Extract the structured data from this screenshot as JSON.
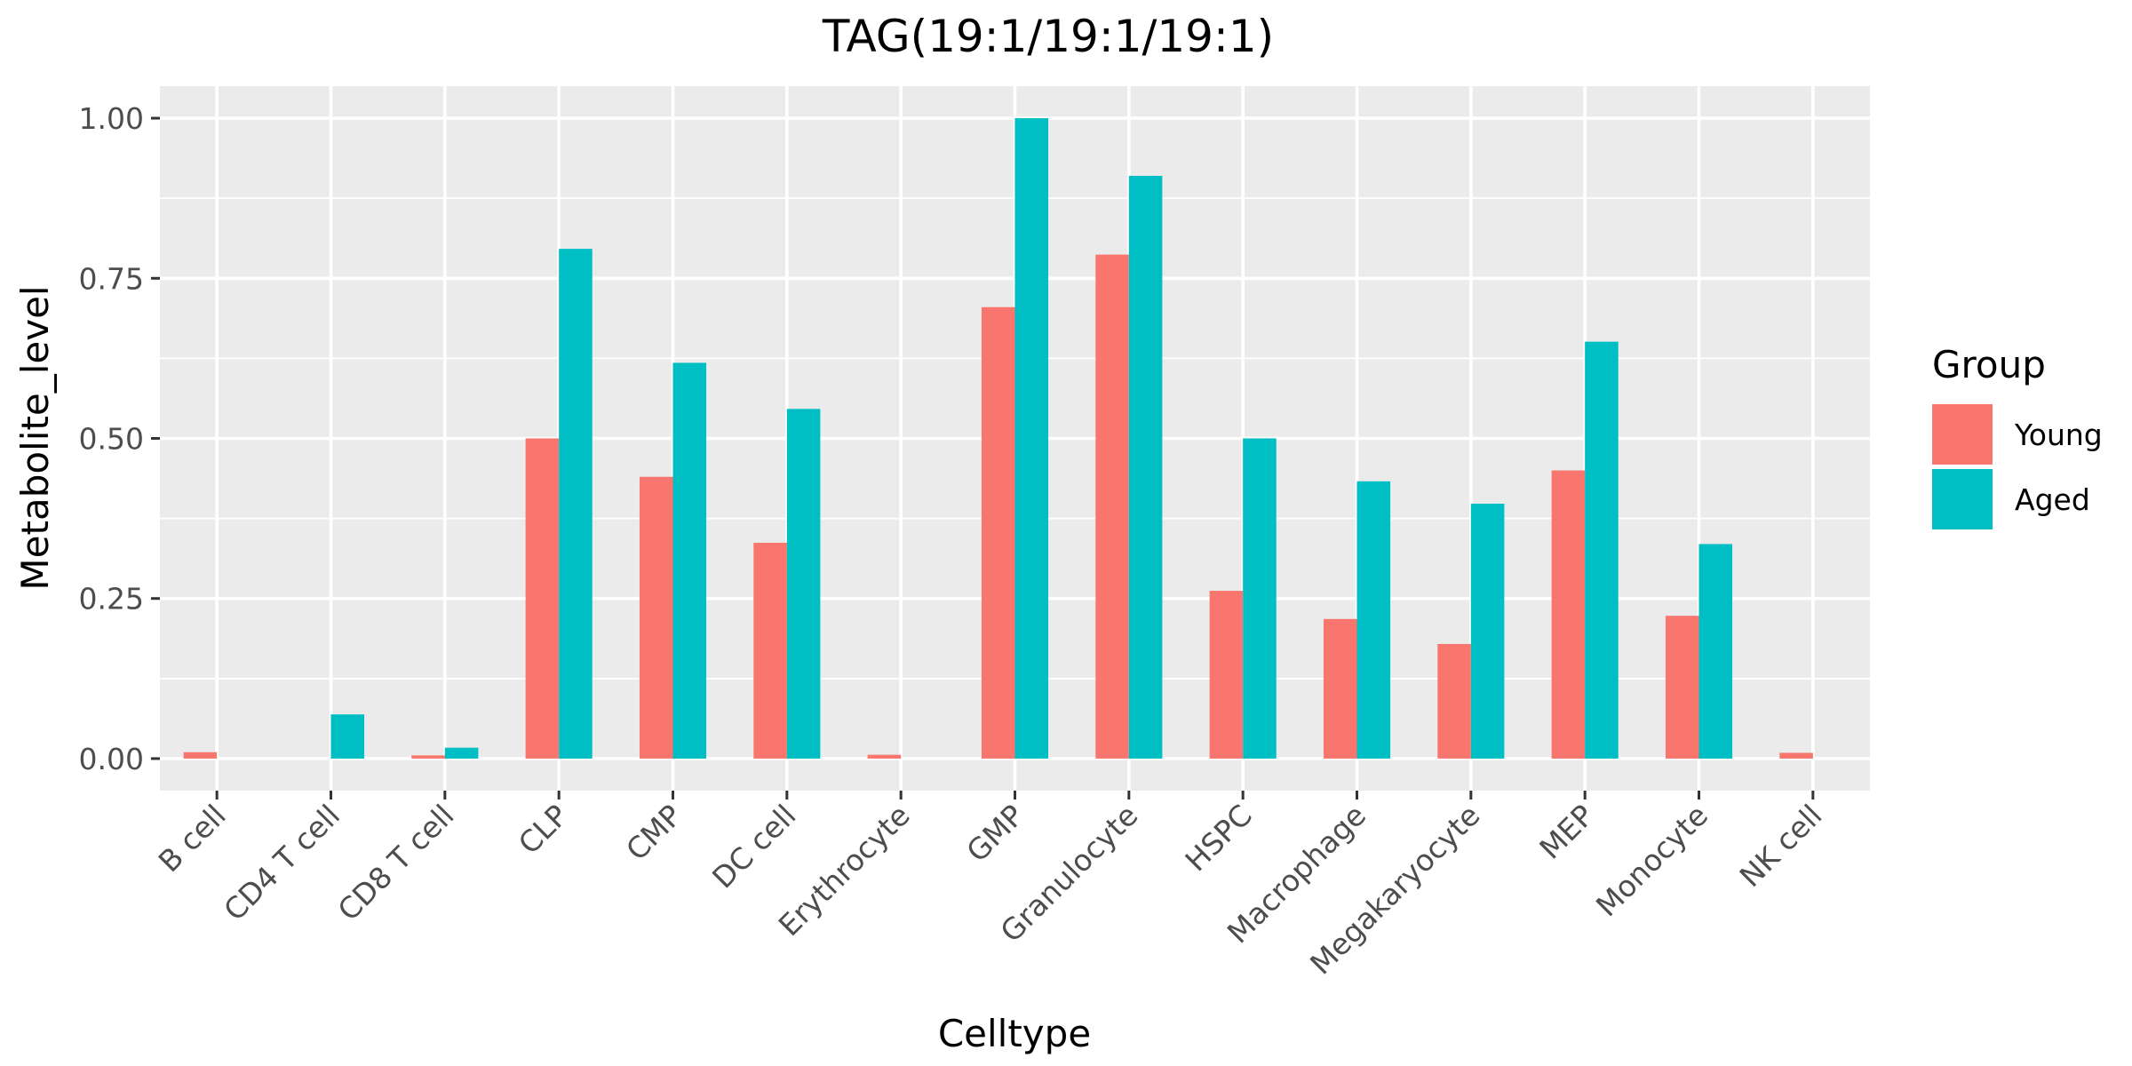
{
  "chart_data": {
    "type": "bar",
    "title": "TAG(19:1/19:1/19:1)",
    "xlabel": "Celltype",
    "ylabel": "Metabolite_level",
    "ylim": [
      -0.05,
      1.05
    ],
    "yticks": [
      "0.00",
      "0.25",
      "0.50",
      "0.75",
      "1.00"
    ],
    "ytick_values": [
      0,
      0.25,
      0.5,
      0.75,
      1.0
    ],
    "grid": true,
    "legend": {
      "title": "Group",
      "placement": "right"
    },
    "categories": [
      "B cell",
      "CD4 T cell",
      "CD8 T cell",
      "CLP",
      "CMP",
      "DC cell",
      "Erythrocyte",
      "GMP",
      "Granulocyte",
      "HSPC",
      "Macrophage",
      "Megakaryocyte",
      "MEP",
      "Monocyte",
      "NK cell"
    ],
    "series": [
      {
        "name": "Young",
        "color": "#F8766D",
        "values": [
          0.01,
          0.0,
          0.005,
          0.5,
          0.44,
          0.337,
          0.006,
          0.705,
          0.787,
          0.262,
          0.218,
          0.179,
          0.45,
          0.223,
          0.009
        ]
      },
      {
        "name": "Aged",
        "color": "#00BFC4",
        "values": [
          0.0,
          0.069,
          0.017,
          0.796,
          0.618,
          0.546,
          0.0,
          1.0,
          0.91,
          0.5,
          0.433,
          0.398,
          0.651,
          0.335,
          0.0
        ]
      }
    ]
  }
}
